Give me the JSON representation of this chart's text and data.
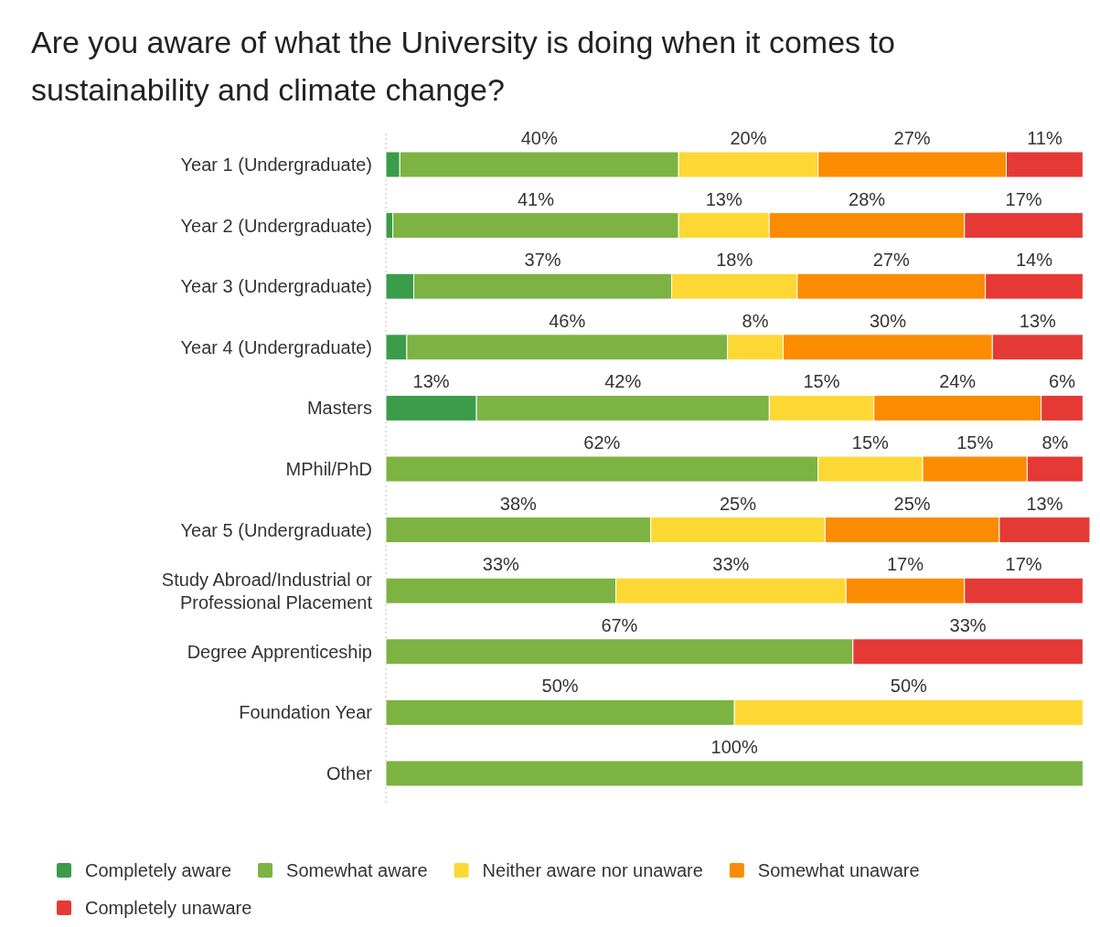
{
  "chart_data": {
    "type": "bar",
    "orientation": "horizontal",
    "stacked": true,
    "title": "Are you aware of what the University is doing when it comes to sustainability and climate change?",
    "legend": "bottom left",
    "categories": [
      "Year 1 (Undergraduate)",
      "Year 2 (Undergraduate)",
      "Year 3 (Undergraduate)",
      "Year 4 (Undergraduate)",
      "Masters",
      "MPhil/PhD",
      "Year 5 (Undergraduate)",
      "Study Abroad/Industrial or Professional Placement",
      "Degree Apprenticeship",
      "Foundation Year",
      "Other"
    ],
    "series": [
      {
        "name": "Completely aware",
        "color": "#3b9c4a",
        "values": [
          2,
          1,
          4,
          3,
          13,
          null,
          null,
          null,
          null,
          null,
          null
        ],
        "value_labels": [
          null,
          null,
          null,
          null,
          "13%",
          null,
          null,
          null,
          null,
          null,
          null
        ]
      },
      {
        "name": "Somewhat aware",
        "color": "#7cb342",
        "values": [
          40,
          41,
          37,
          46,
          42,
          62,
          38,
          33,
          67,
          50,
          100
        ],
        "value_labels": [
          "40%",
          "41%",
          "37%",
          "46%",
          "42%",
          "62%",
          "38%",
          "33%",
          "67%",
          "50%",
          "100%"
        ]
      },
      {
        "name": "Neither aware nor unaware",
        "color": "#fdd835",
        "values": [
          20,
          13,
          18,
          8,
          15,
          15,
          25,
          33,
          null,
          50,
          null
        ],
        "value_labels": [
          "20%",
          "13%",
          "18%",
          "8%",
          "15%",
          "15%",
          "25%",
          "33%",
          null,
          "50%",
          null
        ]
      },
      {
        "name": "Somewhat unaware",
        "color": "#fb8c00",
        "values": [
          27,
          28,
          27,
          30,
          24,
          15,
          25,
          17,
          null,
          null,
          null
        ],
        "value_labels": [
          "27%",
          "28%",
          "27%",
          "30%",
          "24%",
          "15%",
          "25%",
          "17%",
          null,
          null,
          null
        ]
      },
      {
        "name": "Completely unaware",
        "color": "#e53935",
        "values": [
          11,
          17,
          14,
          13,
          6,
          8,
          13,
          17,
          33,
          null,
          null
        ],
        "value_labels": [
          "11%",
          "17%",
          "14%",
          "13%",
          "6%",
          "8%",
          "13%",
          "17%",
          "33%",
          null,
          null
        ]
      }
    ]
  }
}
